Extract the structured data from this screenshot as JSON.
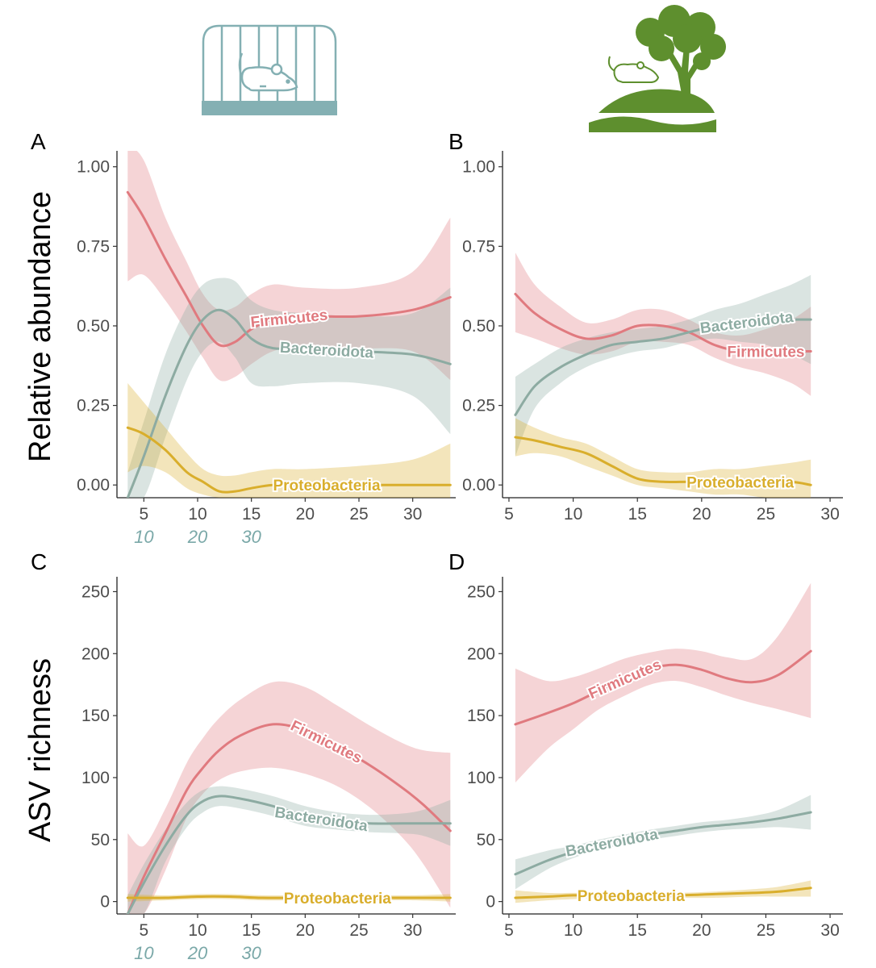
{
  "icons": {
    "lab": "caged-mouse-icon",
    "wild": "wild-mouse-tree-icon"
  },
  "colors": {
    "Firmicutes": "#e07a7f",
    "Bacteroidota": "#8daba2",
    "Proteobacteria": "#d9ae2c",
    "alt_axis": "#7aa8a8",
    "cage": "#84b0b3",
    "tree": "#5e8f2e"
  },
  "chart_data": [
    {
      "panel": "A",
      "type": "line",
      "ylabel": "Relative abundance",
      "xlim": [
        2.5,
        34
      ],
      "ylim": [
        -0.04,
        1.05
      ],
      "xticks": [
        5,
        10,
        15,
        20,
        25,
        30
      ],
      "yticks": [
        0,
        0.25,
        0.5,
        0.75,
        1.0
      ],
      "ytick_labels": [
        "0.00",
        "0.25",
        "0.50",
        "0.75",
        "1.00"
      ],
      "alt_xticks": [
        {
          "at": 5,
          "label": "10"
        },
        {
          "at": 10,
          "label": "20"
        },
        {
          "at": 15,
          "label": "30"
        }
      ],
      "series": [
        {
          "name": "Firmicutes",
          "x": [
            3.5,
            5,
            7,
            9,
            10.5,
            12,
            13.5,
            15,
            17,
            20,
            25,
            30,
            33.5
          ],
          "y": [
            0.92,
            0.84,
            0.71,
            0.59,
            0.5,
            0.44,
            0.45,
            0.49,
            0.52,
            0.53,
            0.53,
            0.55,
            0.59
          ],
          "lower": [
            0.64,
            0.66,
            0.58,
            0.48,
            0.4,
            0.33,
            0.34,
            0.38,
            0.42,
            0.44,
            0.43,
            0.42,
            0.33
          ],
          "upper": [
            1.07,
            1.02,
            0.84,
            0.7,
            0.6,
            0.55,
            0.56,
            0.6,
            0.63,
            0.62,
            0.62,
            0.67,
            0.84
          ],
          "label_at": 18.5
        },
        {
          "name": "Bacteroidota",
          "x": [
            3.5,
            5,
            7,
            9,
            10.5,
            12,
            13.5,
            15,
            17,
            20,
            25,
            30,
            33.5
          ],
          "y": [
            -0.04,
            0.09,
            0.28,
            0.44,
            0.52,
            0.55,
            0.52,
            0.46,
            0.43,
            0.43,
            0.42,
            0.41,
            0.38
          ],
          "lower": [
            -0.04,
            -0.04,
            0.15,
            0.33,
            0.42,
            0.45,
            0.4,
            0.32,
            0.31,
            0.32,
            0.32,
            0.28,
            0.16
          ],
          "upper": [
            0.04,
            0.2,
            0.41,
            0.56,
            0.63,
            0.65,
            0.64,
            0.58,
            0.55,
            0.54,
            0.53,
            0.54,
            0.62
          ],
          "label_at": 22
        },
        {
          "name": "Proteobacteria",
          "x": [
            3.5,
            5,
            7,
            9,
            10.5,
            12,
            13.5,
            15,
            17,
            20,
            25,
            30,
            33.5
          ],
          "y": [
            0.18,
            0.16,
            0.11,
            0.04,
            0.01,
            -0.02,
            -0.02,
            -0.01,
            0.0,
            0.0,
            0.0,
            0.0,
            0.0
          ],
          "lower": [
            0.04,
            0.06,
            0.04,
            -0.01,
            -0.03,
            -0.04,
            -0.04,
            -0.04,
            -0.04,
            -0.04,
            -0.04,
            -0.04,
            -0.04
          ],
          "upper": [
            0.32,
            0.26,
            0.18,
            0.1,
            0.05,
            0.03,
            0.03,
            0.04,
            0.05,
            0.05,
            0.06,
            0.08,
            0.13
          ],
          "label_at": 22
        }
      ]
    },
    {
      "panel": "B",
      "type": "line",
      "xlim": [
        4.5,
        31
      ],
      "ylim": [
        -0.04,
        1.05
      ],
      "xticks": [
        5,
        10,
        15,
        20,
        25,
        30
      ],
      "yticks": [
        0,
        0.25,
        0.5,
        0.75,
        1.0
      ],
      "ytick_labels": [
        "0.00",
        "0.25",
        "0.50",
        "0.75",
        "1.00"
      ],
      "series": [
        {
          "name": "Firmicutes",
          "x": [
            5.5,
            7,
            9,
            11,
            13,
            15,
            17,
            19,
            21,
            23,
            25,
            27,
            28.5
          ],
          "y": [
            0.6,
            0.54,
            0.49,
            0.46,
            0.47,
            0.5,
            0.5,
            0.48,
            0.44,
            0.42,
            0.42,
            0.42,
            0.42
          ],
          "lower": [
            0.48,
            0.46,
            0.43,
            0.41,
            0.42,
            0.45,
            0.45,
            0.44,
            0.4,
            0.37,
            0.35,
            0.32,
            0.28
          ],
          "upper": [
            0.73,
            0.63,
            0.56,
            0.51,
            0.52,
            0.55,
            0.55,
            0.52,
            0.48,
            0.47,
            0.49,
            0.52,
            0.56
          ],
          "label_at": 25
        },
        {
          "name": "Bacteroidota",
          "x": [
            5.5,
            7,
            9,
            11,
            13,
            15,
            17,
            19,
            21,
            23,
            25,
            27,
            28.5
          ],
          "y": [
            0.22,
            0.31,
            0.37,
            0.41,
            0.44,
            0.45,
            0.46,
            0.48,
            0.5,
            0.51,
            0.52,
            0.52,
            0.52
          ],
          "lower": [
            0.09,
            0.24,
            0.32,
            0.37,
            0.4,
            0.42,
            0.43,
            0.45,
            0.46,
            0.45,
            0.44,
            0.41,
            0.38
          ],
          "upper": [
            0.34,
            0.38,
            0.43,
            0.46,
            0.48,
            0.49,
            0.5,
            0.52,
            0.55,
            0.57,
            0.6,
            0.63,
            0.66
          ],
          "label_at": 23.5
        },
        {
          "name": "Proteobacteria",
          "x": [
            5.5,
            7,
            9,
            11,
            13,
            15,
            17,
            19,
            21,
            23,
            25,
            27,
            28.5
          ],
          "y": [
            0.15,
            0.14,
            0.12,
            0.1,
            0.06,
            0.02,
            0.01,
            0.01,
            0.01,
            0.01,
            0.01,
            0.01,
            0.0
          ],
          "lower": [
            0.09,
            0.1,
            0.09,
            0.06,
            0.03,
            0.0,
            -0.01,
            -0.02,
            -0.03,
            -0.03,
            -0.04,
            -0.04,
            -0.04
          ],
          "upper": [
            0.21,
            0.18,
            0.15,
            0.13,
            0.09,
            0.05,
            0.04,
            0.04,
            0.05,
            0.05,
            0.06,
            0.07,
            0.08
          ],
          "label_at": 23
        }
      ]
    },
    {
      "panel": "C",
      "type": "line",
      "ylabel": "ASV richness",
      "xlim": [
        2.5,
        34
      ],
      "ylim": [
        -10,
        262
      ],
      "xticks": [
        5,
        10,
        15,
        20,
        25,
        30
      ],
      "yticks": [
        0,
        50,
        100,
        150,
        200,
        250
      ],
      "ytick_labels": [
        "0",
        "50",
        "100",
        "150",
        "200",
        "250"
      ],
      "alt_xticks": [
        {
          "at": 5,
          "label": "10"
        },
        {
          "at": 10,
          "label": "20"
        },
        {
          "at": 15,
          "label": "30"
        }
      ],
      "series": [
        {
          "name": "Firmicutes",
          "x": [
            3.5,
            5,
            7,
            9,
            10.5,
            12,
            14,
            17,
            20,
            23,
            26,
            29,
            31,
            33.5
          ],
          "y": [
            -10,
            20,
            55,
            90,
            108,
            122,
            134,
            143,
            138,
            125,
            110,
            92,
            78,
            57
          ],
          "lower": [
            -10,
            -10,
            25,
            68,
            87,
            98,
            105,
            108,
            103,
            93,
            76,
            52,
            30,
            -5
          ],
          "upper": [
            55,
            45,
            75,
            112,
            132,
            148,
            163,
            177,
            173,
            158,
            142,
            128,
            122,
            120
          ],
          "label_at": 22
        },
        {
          "name": "Bacteroidota",
          "x": [
            3.5,
            5,
            7,
            9,
            10.5,
            12,
            14,
            17,
            20,
            23,
            26,
            29,
            31,
            33.5
          ],
          "y": [
            -10,
            15,
            45,
            70,
            81,
            85,
            83,
            77,
            69,
            65,
            63,
            63,
            63,
            63
          ],
          "lower": [
            -10,
            -10,
            32,
            60,
            72,
            77,
            75,
            69,
            61,
            58,
            56,
            55,
            53,
            45
          ],
          "upper": [
            5,
            30,
            58,
            80,
            90,
            93,
            91,
            85,
            77,
            72,
            70,
            71,
            74,
            82
          ],
          "label_at": 21.5
        },
        {
          "name": "Proteobacteria",
          "x": [
            3.5,
            7,
            10,
            13,
            16,
            20,
            25,
            30,
            33.5
          ],
          "y": [
            3,
            3,
            4,
            4,
            3,
            3,
            3,
            3,
            3
          ],
          "lower": [
            0,
            1,
            2,
            2,
            1,
            1,
            1,
            1,
            0
          ],
          "upper": [
            6,
            5,
            6,
            6,
            5,
            5,
            5,
            5,
            6
          ],
          "label_at": 23
        }
      ]
    },
    {
      "panel": "D",
      "type": "line",
      "xlim": [
        4.5,
        31
      ],
      "ylim": [
        -10,
        262
      ],
      "xticks": [
        5,
        10,
        15,
        20,
        25,
        30
      ],
      "yticks": [
        0,
        50,
        100,
        150,
        200,
        250
      ],
      "ytick_labels": [
        "0",
        "50",
        "100",
        "150",
        "200",
        "250"
      ],
      "series": [
        {
          "name": "Firmicutes",
          "x": [
            5.5,
            8,
            10,
            12,
            14,
            16,
            18,
            20,
            22,
            24,
            26,
            28.5
          ],
          "y": [
            143,
            152,
            160,
            170,
            180,
            188,
            191,
            187,
            180,
            177,
            183,
            202
          ],
          "lower": [
            96,
            123,
            139,
            155,
            166,
            175,
            178,
            173,
            166,
            160,
            155,
            148
          ],
          "upper": [
            188,
            178,
            181,
            188,
            196,
            201,
            204,
            202,
            197,
            196,
            215,
            257
          ],
          "label_at": 14
        },
        {
          "name": "Bacteroidota",
          "x": [
            5.5,
            8,
            10,
            12,
            14,
            16,
            18,
            20,
            22,
            24,
            26,
            28.5
          ],
          "y": [
            22,
            33,
            40,
            46,
            50,
            54,
            57,
            60,
            62,
            64,
            67,
            72
          ],
          "lower": [
            10,
            26,
            35,
            42,
            46,
            50,
            53,
            56,
            58,
            59,
            60,
            58
          ],
          "upper": [
            34,
            41,
            45,
            50,
            54,
            58,
            61,
            64,
            66,
            69,
            74,
            86
          ],
          "label_at": 13
        },
        {
          "name": "Proteobacteria",
          "x": [
            5.5,
            8,
            10,
            12,
            15,
            18,
            21,
            24,
            26,
            28.5
          ],
          "y": [
            3,
            4,
            5,
            5,
            5,
            5,
            6,
            7,
            8,
            11
          ],
          "lower": [
            -1,
            1,
            2,
            3,
            3,
            3,
            3,
            4,
            4,
            4
          ],
          "upper": [
            9,
            7,
            7,
            7,
            7,
            7,
            8,
            10,
            12,
            17
          ],
          "label_at": 14.5
        }
      ]
    }
  ]
}
